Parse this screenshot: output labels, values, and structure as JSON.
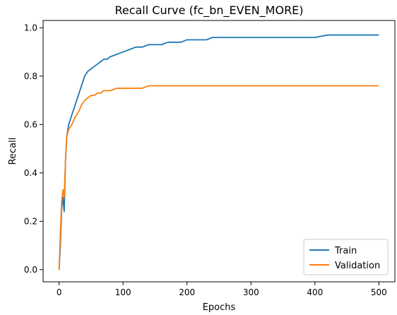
{
  "chart_data": {
    "type": "line",
    "title": "Recall Curve (fc_bn_EVEN_MORE)",
    "xlabel": "Epochs",
    "ylabel": "Recall",
    "xlim": [
      -25,
      525
    ],
    "ylim": [
      -0.05,
      1.03
    ],
    "xticks": [
      0,
      100,
      200,
      300,
      400,
      500
    ],
    "yticks": [
      0.0,
      0.2,
      0.4,
      0.6,
      0.8,
      1.0
    ],
    "xtick_labels": [
      "0",
      "100",
      "200",
      "300",
      "400",
      "500"
    ],
    "ytick_labels": [
      "0.0",
      "0.2",
      "0.4",
      "0.6",
      "0.8",
      "1.0"
    ],
    "legend_position": "lower right",
    "grid": false,
    "series": [
      {
        "name": "Train",
        "color": "#1f77b4",
        "x": [
          0,
          2,
          4,
          6,
          8,
          10,
          12,
          15,
          20,
          25,
          30,
          35,
          40,
          45,
          50,
          55,
          60,
          65,
          70,
          75,
          80,
          90,
          100,
          110,
          120,
          130,
          140,
          150,
          160,
          170,
          180,
          190,
          200,
          210,
          220,
          230,
          240,
          250,
          260,
          270,
          280,
          290,
          300,
          320,
          340,
          360,
          380,
          400,
          420,
          440,
          460,
          480,
          500
        ],
        "y": [
          0.0,
          0.1,
          0.25,
          0.3,
          0.24,
          0.45,
          0.55,
          0.6,
          0.64,
          0.68,
          0.72,
          0.76,
          0.8,
          0.82,
          0.83,
          0.84,
          0.85,
          0.86,
          0.87,
          0.87,
          0.88,
          0.89,
          0.9,
          0.91,
          0.92,
          0.92,
          0.93,
          0.93,
          0.93,
          0.94,
          0.94,
          0.94,
          0.95,
          0.95,
          0.95,
          0.95,
          0.96,
          0.96,
          0.96,
          0.96,
          0.96,
          0.96,
          0.96,
          0.96,
          0.96,
          0.96,
          0.96,
          0.96,
          0.97,
          0.97,
          0.97,
          0.97,
          0.97
        ]
      },
      {
        "name": "Validation",
        "color": "#ff7f0e",
        "x": [
          0,
          2,
          4,
          6,
          8,
          10,
          12,
          15,
          20,
          25,
          30,
          35,
          40,
          45,
          50,
          55,
          60,
          65,
          70,
          75,
          80,
          90,
          100,
          110,
          120,
          130,
          140,
          150,
          160,
          170,
          180,
          190,
          200,
          210,
          220,
          230,
          240,
          250,
          260,
          270,
          280,
          290,
          300,
          320,
          340,
          360,
          380,
          400,
          420,
          440,
          460,
          480,
          500
        ],
        "y": [
          0.0,
          0.15,
          0.28,
          0.33,
          0.3,
          0.45,
          0.55,
          0.58,
          0.6,
          0.63,
          0.65,
          0.68,
          0.7,
          0.71,
          0.72,
          0.72,
          0.73,
          0.73,
          0.74,
          0.74,
          0.74,
          0.75,
          0.75,
          0.75,
          0.75,
          0.75,
          0.76,
          0.76,
          0.76,
          0.76,
          0.76,
          0.76,
          0.76,
          0.76,
          0.76,
          0.76,
          0.76,
          0.76,
          0.76,
          0.76,
          0.76,
          0.76,
          0.76,
          0.76,
          0.76,
          0.76,
          0.76,
          0.76,
          0.76,
          0.76,
          0.76,
          0.76,
          0.76
        ]
      }
    ]
  }
}
